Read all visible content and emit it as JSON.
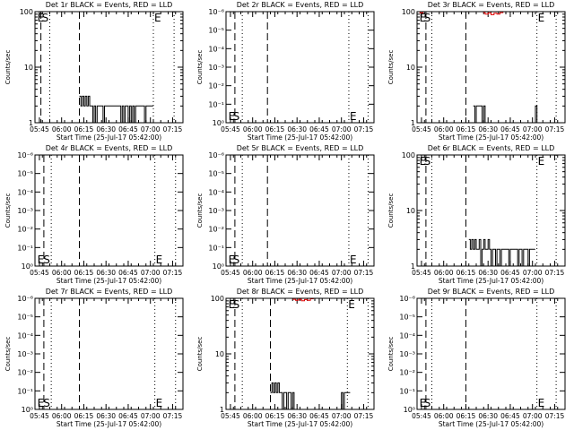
{
  "figure": {
    "xtick_labels": [
      "05:45",
      "06:00",
      "06:15",
      "06:30",
      "06:45",
      "07:00",
      "07:15"
    ],
    "xlabel": "Start Time (25-Jul-17 05:42:00)",
    "ylabel": "Counts/sec"
  },
  "chart_data": [
    {
      "type": "line",
      "title": "Det 1r BLACK = Events, RED = LLD",
      "xlabel": "Start Time (25-Jul-17 05:42:00)",
      "ylabel": "Counts/sec",
      "yscale": "log",
      "ytick_labels": [
        "1",
        "10",
        "100"
      ],
      "ylim": [
        1,
        100
      ],
      "x_time_range": [
        "05:42",
        "07:22"
      ],
      "dashed_lines": [
        "05:46",
        "06:12"
      ],
      "dotted_lines": [
        "05:52",
        "07:02",
        "07:16"
      ],
      "markers": [
        {
          "text": "E",
          "at": "05:43",
          "pos": "top"
        },
        {
          "text": "S",
          "at": "05:46",
          "pos": "top"
        },
        {
          "text": "E",
          "at": "07:02",
          "pos": "top"
        }
      ],
      "series": [
        {
          "color": "#000000",
          "points": [
            [
              "06:12",
              3
            ],
            [
              "06:13",
              2
            ],
            [
              "06:14",
              3
            ],
            [
              "06:15",
              2
            ],
            [
              "06:16",
              3
            ],
            [
              "06:17",
              2
            ],
            [
              "06:18",
              3
            ],
            [
              "06:19",
              2
            ],
            [
              "06:20",
              2
            ],
            [
              "06:21",
              1
            ],
            [
              "06:22",
              2
            ],
            [
              "06:23",
              1
            ],
            [
              "06:24",
              2
            ],
            [
              "06:25",
              2
            ],
            [
              "06:26",
              2
            ],
            [
              "06:27",
              2
            ],
            [
              "06:28",
              1
            ],
            [
              "06:29",
              2
            ],
            [
              "06:30",
              2
            ],
            [
              "06:31",
              2
            ],
            [
              "06:32",
              2
            ],
            [
              "06:33",
              2
            ],
            [
              "06:34",
              2
            ],
            [
              "06:35",
              2
            ],
            [
              "06:36",
              2
            ],
            [
              "06:37",
              2
            ],
            [
              "06:38",
              2
            ],
            [
              "06:39",
              2
            ],
            [
              "06:40",
              1
            ],
            [
              "06:41",
              2
            ],
            [
              "06:42",
              1
            ],
            [
              "06:43",
              2
            ],
            [
              "06:44",
              2
            ],
            [
              "06:45",
              1
            ],
            [
              "06:46",
              2
            ],
            [
              "06:47",
              1
            ],
            [
              "06:48",
              2
            ],
            [
              "06:49",
              1
            ],
            [
              "06:50",
              2
            ],
            [
              "06:51",
              2
            ],
            [
              "06:52",
              2
            ],
            [
              "06:53",
              2
            ],
            [
              "06:54",
              2
            ],
            [
              "06:55",
              2
            ],
            [
              "06:56",
              1
            ],
            [
              "06:57",
              2
            ],
            [
              "06:58",
              2
            ],
            [
              "06:59",
              2
            ],
            [
              "07:00",
              2
            ],
            [
              "07:01",
              2
            ]
          ]
        }
      ]
    },
    {
      "type": "line",
      "title": "Det 2r BLACK = Events, RED = LLD",
      "xlabel": "Start Time (25-Jul-17 05:42:00)",
      "ylabel": "Counts/sec",
      "yscale": "log",
      "ytick_labels": [
        "10⁰",
        "10⁻¹",
        "10⁻²",
        "10⁻³",
        "10⁻⁴",
        "10⁻⁵",
        "10⁻⁶"
      ],
      "ylim": [
        0,
        1
      ],
      "x_time_range": [
        "05:42",
        "07:22"
      ],
      "dashed_lines": [
        "05:48",
        "06:10"
      ],
      "dotted_lines": [
        "05:53",
        "07:05",
        "07:18"
      ],
      "markers": [
        {
          "text": "E",
          "at": "05:43",
          "pos": "bottom"
        },
        {
          "text": "S",
          "at": "05:46",
          "pos": "bottom"
        },
        {
          "text": "E",
          "at": "07:05",
          "pos": "bottom"
        }
      ],
      "series": []
    },
    {
      "type": "line",
      "title": "Det 3r BLACK = Events, RED = LLD",
      "xlabel": "Start Time (25-Jul-17 05:42:00)",
      "ylabel": "Counts/sec",
      "yscale": "log",
      "ytick_labels": [
        "1",
        "10",
        "100"
      ],
      "ylim": [
        1,
        100
      ],
      "x_time_range": [
        "05:42",
        "07:22"
      ],
      "dashed_lines": [
        "05:48",
        "06:15"
      ],
      "dotted_lines": [
        "05:52",
        "07:03",
        "07:16"
      ],
      "markers": [
        {
          "text": "E",
          "at": "05:43",
          "pos": "top"
        },
        {
          "text": "S",
          "at": "05:46",
          "pos": "top"
        },
        {
          "text": "E",
          "at": "07:03",
          "pos": "top"
        }
      ],
      "series": [
        {
          "color": "#e00000",
          "points": [
            [
              "05:42",
              100
            ],
            [
              "05:44",
              95
            ],
            [
              "05:46",
              100
            ],
            [
              "06:27",
              96
            ],
            [
              "06:28",
              90
            ],
            [
              "06:30",
              95
            ],
            [
              "06:32",
              88
            ],
            [
              "06:34",
              94
            ],
            [
              "06:36",
              90
            ],
            [
              "06:38",
              96
            ],
            [
              "06:40",
              100
            ]
          ]
        },
        {
          "color": "#000000",
          "points": [
            [
              "06:20",
              2
            ],
            [
              "06:21",
              1
            ],
            [
              "06:22",
              2
            ],
            [
              "06:23",
              2
            ],
            [
              "06:24",
              2
            ],
            [
              "06:25",
              2
            ],
            [
              "06:26",
              1
            ],
            [
              "06:27",
              2
            ],
            [
              "06:28",
              1
            ],
            [
              "07:02",
              2
            ],
            [
              "07:03",
              1
            ]
          ]
        }
      ]
    },
    {
      "type": "line",
      "title": "Det 4r BLACK = Events, RED = LLD",
      "xlabel": "Start Time (25-Jul-17 05:42:00)",
      "ylabel": "Counts/sec",
      "yscale": "log",
      "ytick_labels": [
        "10⁰",
        "10⁻¹",
        "10⁻²",
        "10⁻³",
        "10⁻⁴",
        "10⁻⁵",
        "10⁻⁶"
      ],
      "ylim": [
        0,
        1
      ],
      "x_time_range": [
        "05:42",
        "07:22"
      ],
      "dashed_lines": [
        "05:48",
        "06:12"
      ],
      "dotted_lines": [
        "05:53",
        "07:03",
        "07:17"
      ],
      "markers": [
        {
          "text": "E",
          "at": "05:43",
          "pos": "bottom"
        },
        {
          "text": "S",
          "at": "05:47",
          "pos": "bottom"
        },
        {
          "text": "E",
          "at": "07:03",
          "pos": "bottom"
        }
      ],
      "series": []
    },
    {
      "type": "line",
      "title": "Det 5r BLACK = Events, RED = LLD",
      "xlabel": "Start Time (25-Jul-17 05:42:00)",
      "ylabel": "Counts/sec",
      "yscale": "log",
      "ytick_labels": [
        "10⁰",
        "10⁻¹",
        "10⁻²",
        "10⁻³",
        "10⁻⁴",
        "10⁻⁵",
        "10⁻⁶"
      ],
      "ylim": [
        0,
        1
      ],
      "x_time_range": [
        "05:42",
        "07:22"
      ],
      "dashed_lines": [
        "05:48",
        "06:10"
      ],
      "dotted_lines": [
        "05:53",
        "07:05",
        "07:18"
      ],
      "markers": [
        {
          "text": "E",
          "at": "05:43",
          "pos": "bottom"
        },
        {
          "text": "S",
          "at": "05:46",
          "pos": "bottom"
        },
        {
          "text": "E",
          "at": "07:05",
          "pos": "bottom"
        }
      ],
      "series": []
    },
    {
      "type": "line",
      "title": "Det 6r BLACK = Events, RED = LLD",
      "xlabel": "Start Time (25-Jul-17 05:42:00)",
      "ylabel": "Counts/sec",
      "yscale": "log",
      "ytick_labels": [
        "1",
        "10",
        "100"
      ],
      "ylim": [
        1,
        100
      ],
      "x_time_range": [
        "05:42",
        "07:22"
      ],
      "dashed_lines": [
        "05:48",
        "06:15"
      ],
      "dotted_lines": [
        "05:52",
        "07:03",
        "07:16"
      ],
      "markers": [
        {
          "text": "E",
          "at": "05:43",
          "pos": "top"
        },
        {
          "text": "S",
          "at": "05:46",
          "pos": "top"
        },
        {
          "text": "E",
          "at": "07:03",
          "pos": "top"
        }
      ],
      "series": [
        {
          "color": "#000000",
          "points": [
            [
              "06:17",
              3
            ],
            [
              "06:18",
              2
            ],
            [
              "06:19",
              3
            ],
            [
              "06:20",
              2
            ],
            [
              "06:21",
              3
            ],
            [
              "06:22",
              2
            ],
            [
              "06:23",
              2
            ],
            [
              "06:24",
              3
            ],
            [
              "06:25",
              1
            ],
            [
              "06:26",
              2
            ],
            [
              "06:27",
              3
            ],
            [
              "06:28",
              2
            ],
            [
              "06:29",
              2
            ],
            [
              "06:30",
              3
            ],
            [
              "06:31",
              2
            ],
            [
              "06:32",
              1
            ],
            [
              "06:33",
              2
            ],
            [
              "06:34",
              2
            ],
            [
              "06:35",
              1
            ],
            [
              "06:36",
              2
            ],
            [
              "06:37",
              2
            ],
            [
              "06:38",
              1
            ],
            [
              "06:39",
              2
            ],
            [
              "06:40",
              2
            ],
            [
              "06:41",
              2
            ],
            [
              "06:42",
              2
            ],
            [
              "06:43",
              2
            ],
            [
              "06:44",
              1
            ],
            [
              "06:45",
              2
            ],
            [
              "06:46",
              2
            ],
            [
              "06:47",
              2
            ],
            [
              "06:48",
              2
            ],
            [
              "06:49",
              2
            ],
            [
              "06:50",
              1
            ],
            [
              "06:51",
              2
            ],
            [
              "06:52",
              2
            ],
            [
              "06:53",
              1
            ],
            [
              "06:54",
              2
            ],
            [
              "06:55",
              2
            ],
            [
              "06:56",
              2
            ],
            [
              "06:57",
              1
            ],
            [
              "06:58",
              2
            ],
            [
              "06:59",
              2
            ],
            [
              "07:00",
              2
            ],
            [
              "07:01",
              2
            ]
          ]
        }
      ]
    },
    {
      "type": "line",
      "title": "Det 7r BLACK = Events, RED = LLD",
      "xlabel": "Start Time (25-Jul-17 05:42:00)",
      "ylabel": "Counts/sec",
      "yscale": "log",
      "ytick_labels": [
        "10⁰",
        "10⁻¹",
        "10⁻²",
        "10⁻³",
        "10⁻⁴",
        "10⁻⁵",
        "10⁻⁶"
      ],
      "ylim": [
        0,
        1
      ],
      "x_time_range": [
        "05:42",
        "07:22"
      ],
      "dashed_lines": [
        "05:48",
        "06:12"
      ],
      "dotted_lines": [
        "05:53",
        "07:03",
        "07:17"
      ],
      "markers": [
        {
          "text": "E",
          "at": "05:43",
          "pos": "bottom"
        },
        {
          "text": "S",
          "at": "05:47",
          "pos": "bottom"
        },
        {
          "text": "E",
          "at": "07:03",
          "pos": "bottom"
        }
      ],
      "series": []
    },
    {
      "type": "line",
      "title": "Det 8r BLACK = Events, RED = LLD",
      "xlabel": "Start Time (25-Jul-17 05:42:00)",
      "ylabel": "Counts/sec",
      "yscale": "log",
      "ytick_labels": [
        "1",
        "10",
        "100"
      ],
      "ylim": [
        1,
        100
      ],
      "x_time_range": [
        "05:42",
        "07:22"
      ],
      "dashed_lines": [
        "05:48",
        "06:12"
      ],
      "dotted_lines": [
        "05:53",
        "07:04",
        "07:18"
      ],
      "markers": [
        {
          "text": "E",
          "at": "05:43",
          "pos": "top"
        },
        {
          "text": "S",
          "at": "05:46",
          "pos": "top"
        },
        {
          "text": "E",
          "at": "07:04",
          "pos": "top"
        }
      ],
      "series": [
        {
          "color": "#e00000",
          "points": [
            [
              "06:27",
              96
            ],
            [
              "06:29",
              92
            ],
            [
              "06:31",
              96
            ],
            [
              "06:33",
              90
            ],
            [
              "06:35",
              95
            ],
            [
              "06:37",
              92
            ],
            [
              "06:39",
              98
            ],
            [
              "06:41",
              100
            ]
          ]
        },
        {
          "color": "#000000",
          "points": [
            [
              "06:12",
              2
            ],
            [
              "06:13",
              3
            ],
            [
              "06:14",
              2
            ],
            [
              "06:15",
              3
            ],
            [
              "06:16",
              2
            ],
            [
              "06:17",
              3
            ],
            [
              "06:18",
              2
            ],
            [
              "06:19",
              2
            ],
            [
              "06:20",
              1
            ],
            [
              "06:21",
              2
            ],
            [
              "06:22",
              2
            ],
            [
              "06:23",
              1
            ],
            [
              "06:24",
              2
            ],
            [
              "06:25",
              2
            ],
            [
              "06:26",
              1
            ],
            [
              "06:27",
              2
            ],
            [
              "06:28",
              1
            ],
            [
              "07:00",
              2
            ],
            [
              "07:01",
              1
            ],
            [
              "07:02",
              2
            ],
            [
              "07:03",
              2
            ],
            [
              "07:04",
              2
            ],
            [
              "07:05",
              2
            ]
          ]
        }
      ]
    },
    {
      "type": "line",
      "title": "Det 9r BLACK = Events, RED = LLD",
      "xlabel": "Start Time (25-Jul-17 05:42:00)",
      "ylabel": "Counts/sec",
      "yscale": "log",
      "ytick_labels": [
        "10⁰",
        "10⁻¹",
        "10⁻²",
        "10⁻³",
        "10⁻⁴",
        "10⁻⁵",
        "10⁻⁶"
      ],
      "ylim": [
        0,
        1
      ],
      "x_time_range": [
        "05:42",
        "07:22"
      ],
      "dashed_lines": [
        "05:48",
        "06:15"
      ],
      "dotted_lines": [
        "05:52",
        "07:03",
        "07:16"
      ],
      "markers": [
        {
          "text": "E",
          "at": "05:43",
          "pos": "bottom"
        },
        {
          "text": "S",
          "at": "05:46",
          "pos": "bottom"
        },
        {
          "text": "E",
          "at": "07:03",
          "pos": "bottom"
        }
      ],
      "series": []
    }
  ]
}
